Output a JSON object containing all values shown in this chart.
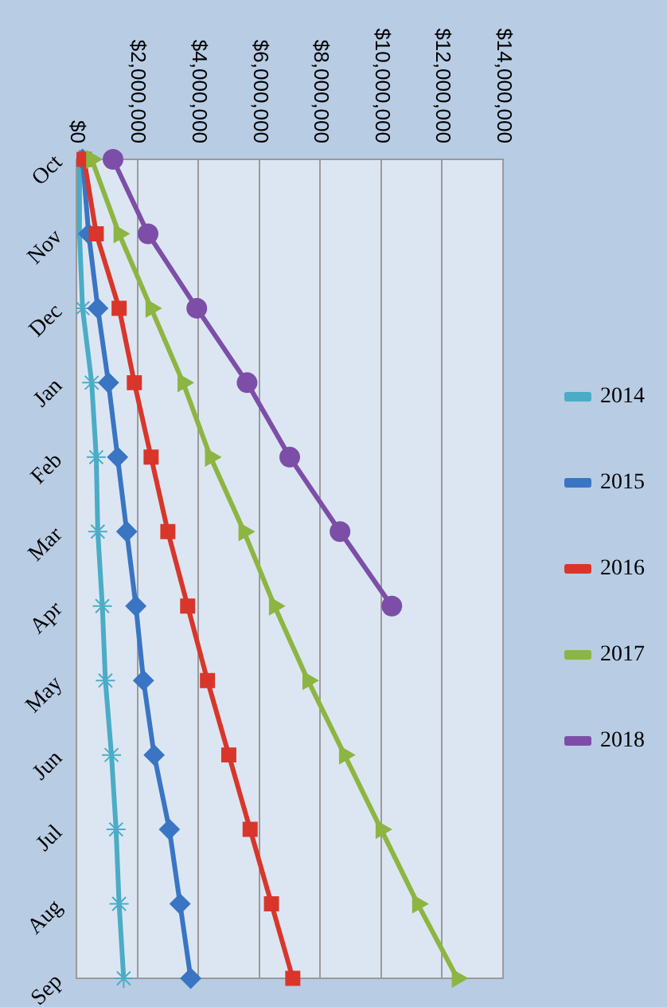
{
  "chart_data": {
    "type": "line",
    "orientation": "horizontal",
    "categories": [
      "Oct",
      "Nov",
      "Dec",
      "Jan",
      "Feb",
      "Mar",
      "Apr",
      "May",
      "Jun",
      "Jul",
      "Aug",
      "Sep"
    ],
    "series": [
      {
        "name": "2014",
        "color": "#4bacc6",
        "marker": "cross",
        "values": [
          100000,
          100000,
          200000,
          500000,
          650000,
          700000,
          850000,
          950000,
          1150000,
          1300000,
          1400000,
          1550000
        ]
      },
      {
        "name": "2015",
        "color": "#3a75c4",
        "marker": "diamond",
        "values": [
          200000,
          400000,
          700000,
          1050000,
          1350000,
          1650000,
          1950000,
          2200000,
          2550000,
          3050000,
          3400000,
          3750000
        ]
      },
      {
        "name": "2016",
        "color": "#d9362b",
        "marker": "square",
        "values": [
          250000,
          650000,
          1400000,
          1900000,
          2450000,
          3000000,
          3650000,
          4300000,
          5000000,
          5700000,
          6400000,
          7100000
        ]
      },
      {
        "name": "2017",
        "color": "#8db542",
        "marker": "triangle",
        "values": [
          500000,
          1400000,
          2450000,
          3500000,
          4400000,
          5500000,
          6500000,
          7600000,
          8800000,
          10000000,
          11200000,
          12500000
        ]
      },
      {
        "name": "2018",
        "color": "#7d4ea8",
        "marker": "circle",
        "values": [
          1200000,
          2350000,
          3950000,
          5600000,
          7000000,
          8650000,
          10350000,
          null,
          null,
          null,
          null,
          null
        ]
      }
    ],
    "xlim": [
      0,
      14000000
    ],
    "xticks": [
      {
        "value": 0,
        "label": "$0"
      },
      {
        "value": 2000000,
        "label": "$2,000,000"
      },
      {
        "value": 4000000,
        "label": "$4,000,000"
      },
      {
        "value": 6000000,
        "label": "$6,000,000"
      },
      {
        "value": 8000000,
        "label": "$8,000,000"
      },
      {
        "value": 10000000,
        "label": "$10,000,000"
      },
      {
        "value": 12000000,
        "label": "$12,000,000"
      },
      {
        "value": 14000000,
        "label": "$14,000,000"
      }
    ],
    "grid": "x",
    "legend": "right"
  }
}
